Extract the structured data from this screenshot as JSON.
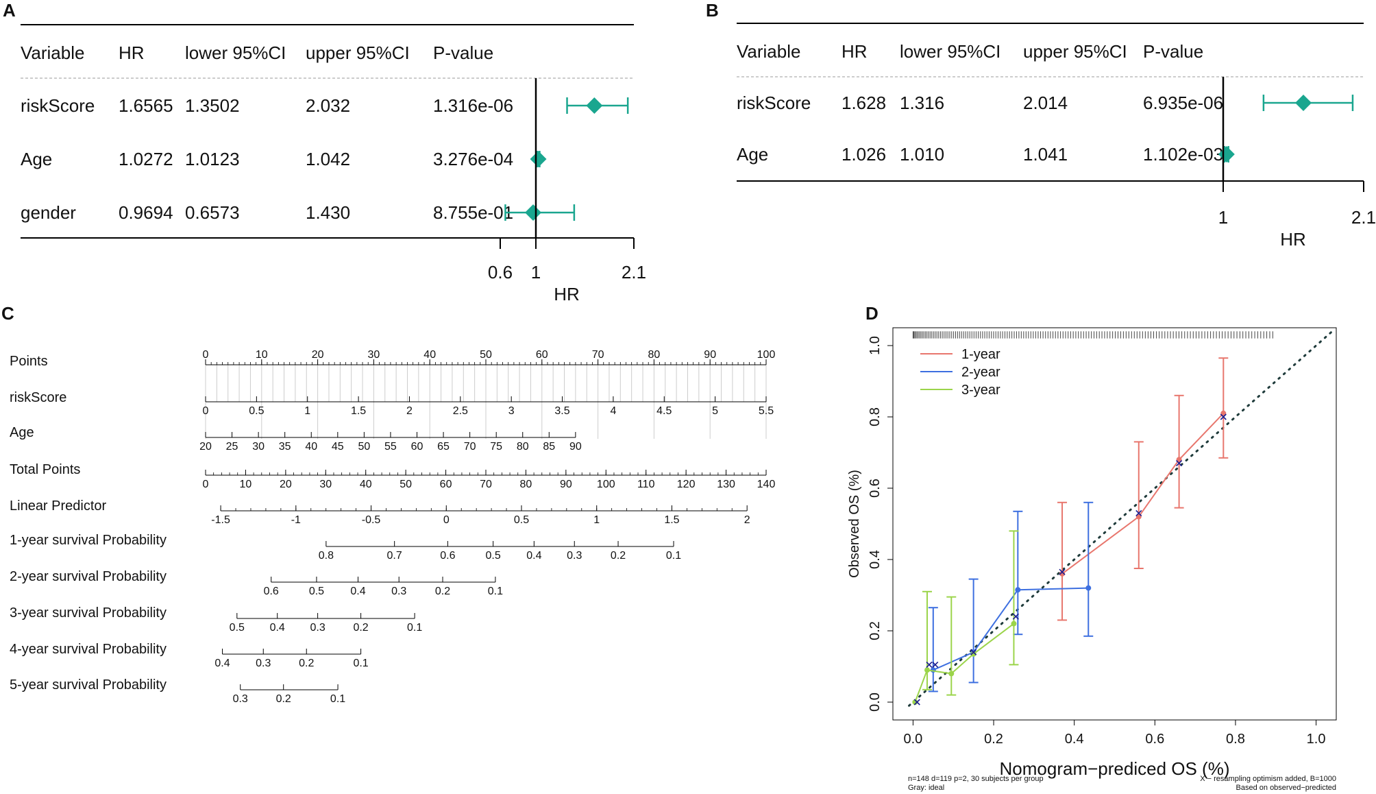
{
  "chart_data": [
    {
      "panel": "A",
      "type": "forest",
      "columns": [
        "Variable",
        "HR",
        "lower 95%CI",
        "upper 95%CI",
        "P-value"
      ],
      "rows": [
        {
          "variable": "riskScore",
          "hr": "1.6565",
          "lower": "1.3502",
          "upper": "2.032",
          "p": "1.316e-06",
          "hr_val": 1.6565,
          "lower_val": 1.3502,
          "upper_val": 2.032
        },
        {
          "variable": "Age",
          "hr": "1.0272",
          "lower": "1.0123",
          "upper": "1.042",
          "p": "3.276e-04",
          "hr_val": 1.0272,
          "lower_val": 1.0123,
          "upper_val": 1.042
        },
        {
          "variable": "gender",
          "hr": "0.9694",
          "lower": "0.6573",
          "upper": "1.430",
          "p": "8.755e-01",
          "hr_val": 0.9694,
          "lower_val": 0.6573,
          "upper_val": 1.43
        }
      ],
      "xlim": [
        0.6,
        2.1
      ],
      "ticks": [
        0.6,
        1,
        2.1
      ],
      "tick_labels": [
        "0.6",
        "1",
        "2.1"
      ],
      "xlabel": "HR",
      "ref_line": 1,
      "color": "#1aa68f"
    },
    {
      "panel": "B",
      "type": "forest",
      "columns": [
        "Variable",
        "HR",
        "lower 95%CI",
        "upper 95%CI",
        "P-value"
      ],
      "rows": [
        {
          "variable": "riskScore",
          "hr": "1.628",
          "lower": "1.316",
          "upper": "2.014",
          "p": "6.935e-06",
          "hr_val": 1.628,
          "lower_val": 1.316,
          "upper_val": 2.014
        },
        {
          "variable": "Age",
          "hr": "1.026",
          "lower": "1.010",
          "upper": "1.041",
          "p": "1.102e-03",
          "hr_val": 1.026,
          "lower_val": 1.01,
          "upper_val": 1.041
        }
      ],
      "xlim": [
        1,
        2.1
      ],
      "ticks": [
        1,
        2.1
      ],
      "tick_labels": [
        "1",
        "2.1"
      ],
      "xlabel": "HR",
      "ref_line": 1,
      "color": "#1aa68f"
    },
    {
      "panel": "C",
      "type": "nomogram",
      "scales": [
        {
          "label": "Points",
          "start": 0,
          "end": 100,
          "ticks": [
            "0",
            "10",
            "20",
            "30",
            "40",
            "50",
            "60",
            "70",
            "80",
            "90",
            "100"
          ],
          "minor": 10
        },
        {
          "label": "riskScore",
          "start": 0,
          "end": 100,
          "ticks": [
            "0",
            "0.5",
            "1",
            "1.5",
            "2",
            "2.5",
            "3",
            "3.5",
            "4",
            "4.5",
            "5",
            "5.5"
          ],
          "minor": 0
        },
        {
          "label": "Age",
          "start": 0,
          "end": 66,
          "ticks": [
            "20",
            "25",
            "30",
            "35",
            "40",
            "45",
            "50",
            "55",
            "60",
            "65",
            "70",
            "75",
            "80",
            "85",
            "90"
          ],
          "minor": 0
        },
        {
          "label": "Total Points",
          "start": 0,
          "end": 100,
          "ticks": [
            "0",
            "10",
            "20",
            "30",
            "40",
            "50",
            "60",
            "70",
            "80",
            "90",
            "100",
            "110",
            "120",
            "130",
            "140"
          ],
          "minor": 5
        },
        {
          "label": "Linear Predictor",
          "start": 2.7,
          "end": 96.6,
          "ticks": [
            "-1.5",
            "-1",
            "-0.5",
            "0",
            "0.5",
            "1",
            "1.5",
            "2"
          ],
          "minor": 5
        },
        {
          "label": "1-year survival Probability",
          "start": 21.5,
          "end": 83.5,
          "ticks": [
            "0.8",
            "0.7",
            "0.6",
            "0.5",
            "0.4",
            "0.3",
            "0.2",
            "0.1"
          ],
          "tick_pos": [
            21.5,
            33.7,
            43.2,
            51.3,
            58.6,
            65.8,
            73.6,
            83.5
          ]
        },
        {
          "label": "2-year survival Probability",
          "start": 11.7,
          "end": 51.7,
          "ticks": [
            "0.6",
            "0.5",
            "0.4",
            "0.3",
            "0.2",
            "0.1"
          ],
          "tick_pos": [
            11.7,
            19.8,
            27.2,
            34.5,
            42.3,
            51.7
          ]
        },
        {
          "label": "3-year survival Probability",
          "start": 5.6,
          "end": 37.3,
          "ticks": [
            "0.5",
            "0.4",
            "0.3",
            "0.2",
            "0.1"
          ],
          "tick_pos": [
            5.6,
            12.8,
            20.0,
            27.7,
            37.3
          ]
        },
        {
          "label": "4-year survival Probability",
          "start": 3.0,
          "end": 27.7,
          "ticks": [
            "0.4",
            "0.3",
            "0.2",
            "0.1"
          ],
          "tick_pos": [
            3.0,
            10.3,
            18.0,
            27.7
          ]
        },
        {
          "label": "5-year survival Probability",
          "start": 6.2,
          "end": 23.6,
          "ticks": [
            "0.3",
            "0.2",
            "0.1"
          ],
          "tick_pos": [
            6.2,
            13.9,
            23.6
          ]
        }
      ]
    },
    {
      "panel": "D",
      "type": "calibration",
      "xlabel": "Nomogram−prediced OS (%)",
      "ylabel": "Observed OS (%)",
      "xlim": [
        -0.05,
        1.05
      ],
      "ylim": [
        -0.05,
        1.05
      ],
      "x_ticks": [
        "0.0",
        "0.2",
        "0.4",
        "0.6",
        "0.8",
        "1.0"
      ],
      "y_ticks": [
        "0.0",
        "0.2",
        "0.4",
        "0.6",
        "0.8",
        "1.0"
      ],
      "series": [
        {
          "name": "1-year",
          "color": "#e8766d",
          "points": [
            {
              "x": 0.37,
              "y": 0.36,
              "lo": 0.23,
              "hi": 0.56
            },
            {
              "x": 0.56,
              "y": 0.52,
              "lo": 0.375,
              "hi": 0.73
            },
            {
              "x": 0.66,
              "y": 0.68,
              "lo": 0.545,
              "hi": 0.86
            },
            {
              "x": 0.77,
              "y": 0.81,
              "lo": 0.685,
              "hi": 0.965
            }
          ]
        },
        {
          "name": "2-year",
          "color": "#3d6fe0",
          "points": [
            {
              "x": 0.05,
              "y": 0.09,
              "lo": 0.03,
              "hi": 0.265
            },
            {
              "x": 0.15,
              "y": 0.14,
              "lo": 0.055,
              "hi": 0.345
            },
            {
              "x": 0.26,
              "y": 0.315,
              "lo": 0.19,
              "hi": 0.535
            },
            {
              "x": 0.435,
              "y": 0.32,
              "lo": 0.185,
              "hi": 0.56
            }
          ]
        },
        {
          "name": "3-year",
          "color": "#9bd44a",
          "points": [
            {
              "x": 0.005,
              "y": 0.0,
              "lo": 0.0,
              "hi": 0.0
            },
            {
              "x": 0.035,
              "y": 0.09,
              "lo": 0.035,
              "hi": 0.31
            },
            {
              "x": 0.095,
              "y": 0.08,
              "lo": 0.02,
              "hi": 0.295
            },
            {
              "x": 0.15,
              "y": 0.135,
              "lo": 0.14,
              "hi": 0.14
            },
            {
              "x": 0.25,
              "y": 0.22,
              "lo": 0.105,
              "hi": 0.48
            }
          ]
        }
      ],
      "crosses": [
        [
          0.01,
          0.0
        ],
        [
          0.04,
          0.105
        ],
        [
          0.055,
          0.105
        ],
        [
          0.15,
          0.14
        ],
        [
          0.255,
          0.24
        ],
        [
          0.37,
          0.365
        ],
        [
          0.56,
          0.53
        ],
        [
          0.66,
          0.67
        ],
        [
          0.77,
          0.8
        ]
      ],
      "ideal_line": "dotted diagonal",
      "footnote_left_1": "n=148 d=119 p=2, 30 subjects per group",
      "footnote_left_2": "Gray: ideal",
      "footnote_right_1": "X − resampling optimism added, B=1000",
      "footnote_right_2": "Based on observed−predicted"
    }
  ]
}
